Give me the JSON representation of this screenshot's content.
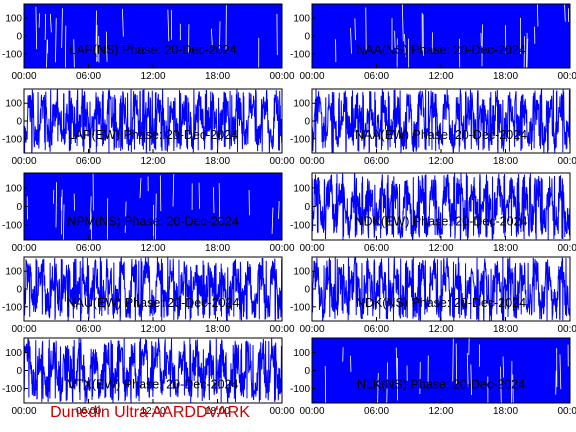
{
  "footer_text": "Dunedin Ultra AARDDVARK",
  "colors": {
    "trace": "#0000ff",
    "axis": "#000000",
    "footer": "#cc0000",
    "background": "#ffffff"
  },
  "chart_data": [
    {
      "type": "line",
      "title": "LAP(NS) Phase: 20-Dec-2024",
      "x_ticks": [
        "00:00",
        "06:00",
        "12:00",
        "18:00",
        "00:00"
      ],
      "y_ticks": [
        "100",
        "0",
        "-100"
      ],
      "ylim": [
        -180,
        180
      ],
      "style": "dense"
    },
    {
      "type": "line",
      "title": "NAA(NS) Phase: 20-Dec-2024",
      "x_ticks": [
        "00:00",
        "06:00",
        "12:00",
        "18:00",
        "00:00"
      ],
      "y_ticks": [
        "100",
        "0",
        "-100"
      ],
      "ylim": [
        -180,
        180
      ],
      "style": "dense"
    },
    {
      "type": "line",
      "title": "LAP(EW) Phase: 20-Dec-2024",
      "x_ticks": [
        "00:00",
        "06:00",
        "12:00",
        "18:00",
        "00:00"
      ],
      "y_ticks": [
        "100",
        "0",
        "-100"
      ],
      "ylim": [
        -180,
        180
      ],
      "style": "wavy"
    },
    {
      "type": "line",
      "title": "NAA(EW) Phase: 20-Dec-2024",
      "x_ticks": [
        "00:00",
        "06:00",
        "12:00",
        "18:00",
        "00:00"
      ],
      "y_ticks": [
        "100",
        "0",
        "-100"
      ],
      "ylim": [
        -180,
        180
      ],
      "style": "wavy"
    },
    {
      "type": "line",
      "title": "NPM(NS) Phase: 20-Dec-2024",
      "x_ticks": [
        "00:00",
        "06:00",
        "12:00",
        "18:00",
        "00:00"
      ],
      "y_ticks": [
        "100",
        "0",
        "-100"
      ],
      "ylim": [
        -180,
        180
      ],
      "style": "dense"
    },
    {
      "type": "line",
      "title": "NDK(EW) Phase: 20-Dec-2024",
      "x_ticks": [
        "00:00",
        "06:00",
        "12:00",
        "18:00",
        "00:00"
      ],
      "y_ticks": [
        "100",
        "0",
        "-100"
      ],
      "ylim": [
        -180,
        180
      ],
      "style": "wavy"
    },
    {
      "type": "line",
      "title": "NAU(EW) Phase: 20-Dec-2024",
      "x_ticks": [
        "00:00",
        "06:00",
        "12:00",
        "18:00",
        "00:00"
      ],
      "y_ticks": [
        "100",
        "0",
        "-100"
      ],
      "ylim": [
        -180,
        180
      ],
      "style": "wavy"
    },
    {
      "type": "line",
      "title": "NDK(NS) Phase: 20-Dec-2024",
      "x_ticks": [
        "00:00",
        "06:00",
        "12:00",
        "18:00",
        "00:00"
      ],
      "y_ticks": [
        "100",
        "0",
        "-100"
      ],
      "ylim": [
        -180,
        180
      ],
      "style": "wavy"
    },
    {
      "type": "line",
      "title": "VTX(EW) Phase: 20-Dec-2024",
      "x_ticks": [
        "00:00",
        "06:00",
        "12:00",
        "18:00",
        "00:00"
      ],
      "y_ticks": [
        "100",
        "0",
        "-100"
      ],
      "ylim": [
        -180,
        180
      ],
      "style": "wavy"
    },
    {
      "type": "line",
      "title": "NLK(NS) Phase: 20-Dec-2024",
      "x_ticks": [
        "00:00",
        "06:00",
        "12:00",
        "18:00",
        "00:00"
      ],
      "y_ticks": [
        "100",
        "0",
        "-100"
      ],
      "ylim": [
        -180,
        180
      ],
      "style": "dense"
    }
  ]
}
